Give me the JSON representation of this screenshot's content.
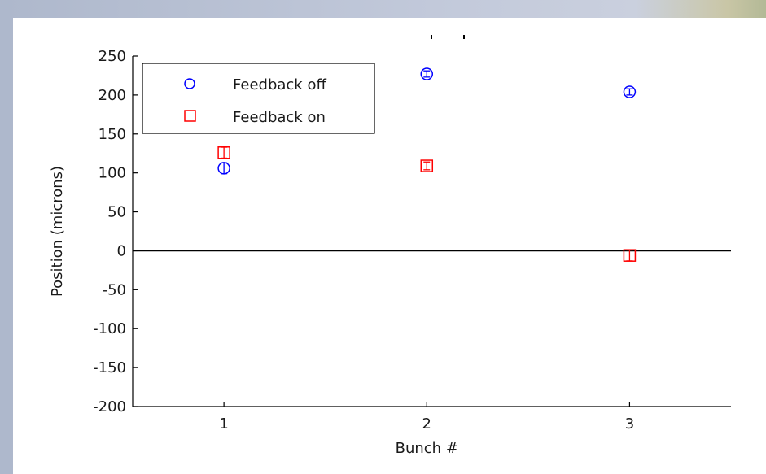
{
  "chart_data": {
    "type": "scatter",
    "xlabel": "Bunch #",
    "ylabel": "Position (microns)",
    "xlim": [
      0.55,
      3.5
    ],
    "ylim": [
      -200,
      250
    ],
    "xticks": [
      1,
      2,
      3
    ],
    "yticks": [
      -200,
      -150,
      -100,
      -50,
      0,
      50,
      100,
      150,
      200,
      250
    ],
    "zero_line": true,
    "grid": false,
    "legend_position": "top-left",
    "series": [
      {
        "name": "Feedback off",
        "marker": "circle",
        "color": "#0000ff",
        "x": [
          1,
          2,
          3
        ],
        "y": [
          106,
          227,
          204
        ],
        "err": [
          7,
          4,
          4
        ]
      },
      {
        "name": "Feedback on",
        "marker": "square",
        "color": "#ff0000",
        "x": [
          1,
          2,
          3
        ],
        "y": [
          126,
          109,
          -6
        ],
        "err": [
          7,
          5,
          7
        ]
      }
    ]
  }
}
